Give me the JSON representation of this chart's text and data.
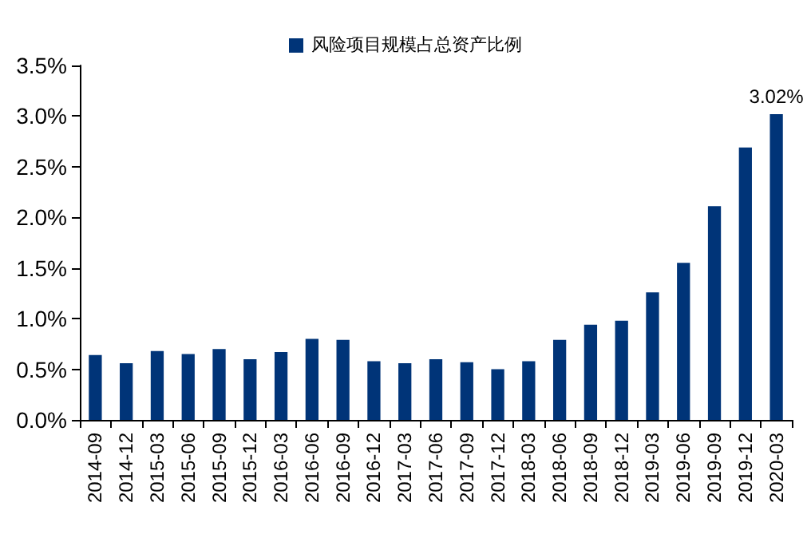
{
  "chart_data": {
    "type": "bar",
    "categories": [
      "2014-09",
      "2014-12",
      "2015-03",
      "2015-06",
      "2015-09",
      "2015-12",
      "2016-03",
      "2016-06",
      "2016-09",
      "2016-12",
      "2017-03",
      "2017-06",
      "2017-09",
      "2017-12",
      "2018-03",
      "2018-06",
      "2018-09",
      "2018-12",
      "2019-03",
      "2019-06",
      "2019-09",
      "2019-12",
      "2020-03"
    ],
    "series": [
      {
        "name": "风险项目规模占总资产比例",
        "color": "#003478",
        "values": [
          0.64,
          0.56,
          0.68,
          0.65,
          0.7,
          0.6,
          0.67,
          0.8,
          0.79,
          0.58,
          0.56,
          0.6,
          0.57,
          0.5,
          0.58,
          0.79,
          0.94,
          0.98,
          1.26,
          1.55,
          2.11,
          2.69,
          3.02
        ],
        "value_labels": [
          null,
          null,
          null,
          null,
          null,
          null,
          null,
          null,
          null,
          null,
          null,
          null,
          null,
          null,
          null,
          null,
          null,
          null,
          null,
          null,
          null,
          null,
          "3.02%"
        ]
      }
    ],
    "ylim": [
      0,
      3.5
    ],
    "yticks": [
      {
        "value": 0,
        "label": "0.0%"
      },
      {
        "value": 0.5,
        "label": "0.5%"
      },
      {
        "value": 1,
        "label": "1.0%"
      },
      {
        "value": 1.5,
        "label": "1.5%"
      },
      {
        "value": 2,
        "label": "2.0%"
      },
      {
        "value": 2.5,
        "label": "2.5%"
      },
      {
        "value": 3,
        "label": "3.0%"
      },
      {
        "value": 3.5,
        "label": "3.5%"
      }
    ],
    "grid": false,
    "legend": "top"
  }
}
